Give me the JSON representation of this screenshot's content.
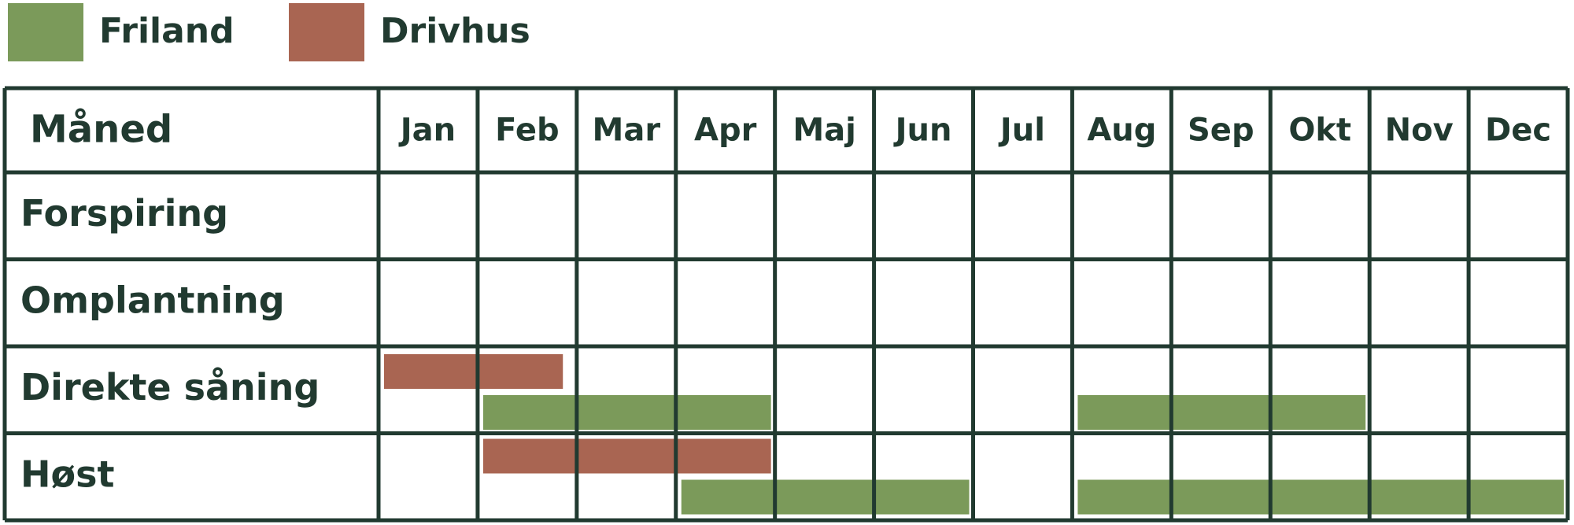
{
  "legend": [
    {
      "label": "Friland",
      "color": "#7b9a5a"
    },
    {
      "label": "Drivhus",
      "color": "#a96552"
    }
  ],
  "table": {
    "corner": "Måned",
    "months": [
      "Jan",
      "Feb",
      "Mar",
      "Apr",
      "Maj",
      "Jun",
      "Jul",
      "Aug",
      "Sep",
      "Okt",
      "Nov",
      "Dec"
    ],
    "rows": [
      {
        "label": "Forspiring",
        "bars": []
      },
      {
        "label": "Omplantning",
        "bars": []
      },
      {
        "label": "Direkte såning",
        "bars": [
          {
            "legend": 1,
            "start": 0,
            "end": 1.9
          },
          {
            "legend": 0,
            "start": 1,
            "end": 4
          },
          {
            "legend": 0,
            "start": 7,
            "end": 10
          }
        ]
      },
      {
        "label": "Høst",
        "bars": [
          {
            "legend": 1,
            "start": 1,
            "end": 4
          },
          {
            "legend": 0,
            "start": 3,
            "end": 6
          },
          {
            "legend": 0,
            "start": 7,
            "end": 12
          }
        ]
      }
    ]
  }
}
